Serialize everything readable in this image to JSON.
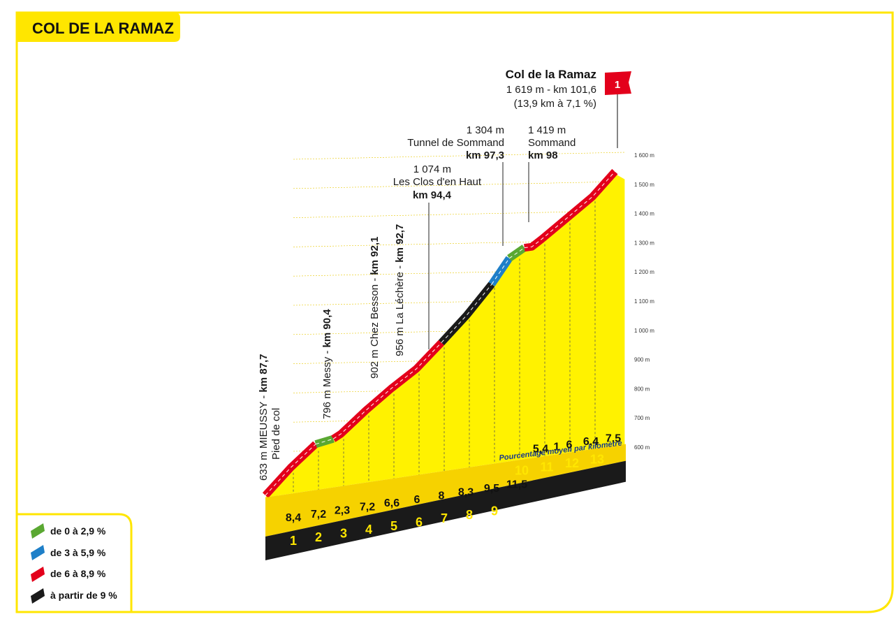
{
  "title": "COL DE LA RAMAZ",
  "colors": {
    "frame": "#ffe600",
    "profile_fill": "#fff200",
    "base": "#1a1a1a",
    "green": "#5aa832",
    "blue": "#1e7fc8",
    "red": "#e3001b",
    "black": "#1a1a1a"
  },
  "summit": {
    "name": "Col de la Ramaz",
    "line1": "1 619 m - km 101,6",
    "line2": "(13,9 km à 7,1 %)",
    "category": "1",
    "category_icon": "red-flag-icon"
  },
  "waypoints_h": [
    {
      "alt": "1 304 m",
      "name": "Tunnel de Sommand",
      "km": "km 97,3"
    },
    {
      "alt": "1 419 m",
      "name": "Sommand",
      "km": "km 98"
    },
    {
      "alt": "1 074 m",
      "name": "Les Clos d'en Haut",
      "km": "km 94,4"
    }
  ],
  "waypoints_v": [
    {
      "text": "633 m MIEUSSY - ",
      "km": "km 87,7",
      "sub": "Pied de col"
    },
    {
      "text": "796 m  Messy - ",
      "km": "km 90,4"
    },
    {
      "text": "902 m Chez Besson - ",
      "km": "km 92,1"
    },
    {
      "text": "956 m La Léchère - ",
      "km": "km 92,7"
    }
  ],
  "avg_note": "Pourcentage moyen par kilomètre",
  "legend": [
    {
      "label": "de 0 à 2,9 %",
      "color": "#5aa832"
    },
    {
      "label": "de 3 à 5,9 %",
      "color": "#1e7fc8"
    },
    {
      "label": "de 6 à 8,9 %",
      "color": "#e3001b"
    },
    {
      "label": "à partir de 9 %",
      "color": "#1a1a1a"
    }
  ],
  "chart_data": {
    "type": "area",
    "title": "COL DE LA RAMAZ",
    "xlabel": "",
    "ylabel": "",
    "x_unit": "km",
    "y_unit": "m",
    "ylim": [
      600,
      1600
    ],
    "y_ticks": [
      "600 m",
      "700 m",
      "800 m",
      "900 m",
      "1 000 m",
      "1 100 m",
      "1 200 m",
      "1 300 m",
      "1 400 m",
      "1 500 m",
      "1 600 m"
    ],
    "km_markers": [
      "1",
      "2",
      "3",
      "4",
      "5",
      "6",
      "7",
      "8",
      "9",
      "10",
      "11",
      "12",
      "13"
    ],
    "segment_grades": [
      "8,4",
      "7,2",
      "2,3",
      "7,2",
      "6,6",
      "6",
      "8",
      "8,3",
      "9,5",
      "11,5",
      "5,4",
      "1",
      "6",
      "6,4",
      "7,5"
    ],
    "profile": [
      {
        "km": 0,
        "alt": 633
      },
      {
        "km": 1,
        "alt": 717
      },
      {
        "km": 2,
        "alt": 789
      },
      {
        "km": 2.7,
        "alt": 805
      },
      {
        "km": 3,
        "alt": 820
      },
      {
        "km": 4,
        "alt": 892
      },
      {
        "km": 5,
        "alt": 958
      },
      {
        "km": 6,
        "alt": 1018
      },
      {
        "km": 7,
        "alt": 1098
      },
      {
        "km": 8,
        "alt": 1181
      },
      {
        "km": 9,
        "alt": 1276
      },
      {
        "km": 9.7,
        "alt": 1355
      },
      {
        "km": 10.3,
        "alt": 1387
      },
      {
        "km": 10.6,
        "alt": 1390
      },
      {
        "km": 11,
        "alt": 1414
      },
      {
        "km": 12,
        "alt": 1478
      },
      {
        "km": 13,
        "alt": 1542
      },
      {
        "km": 13.9,
        "alt": 1619
      }
    ],
    "segments": [
      {
        "from": 0,
        "to": 2,
        "color": "red"
      },
      {
        "from": 2,
        "to": 3,
        "color": "green"
      },
      {
        "from": 3,
        "to": 8,
        "color": "red"
      },
      {
        "from": 8,
        "to": 10,
        "color": "black"
      },
      {
        "from": 10,
        "to": 11,
        "color": "blue"
      },
      {
        "from": 11,
        "to": 12,
        "color": "green"
      },
      {
        "from": 12,
        "to": 17,
        "color": "red"
      }
    ],
    "grid": true,
    "legend_position": "bottom-left"
  }
}
